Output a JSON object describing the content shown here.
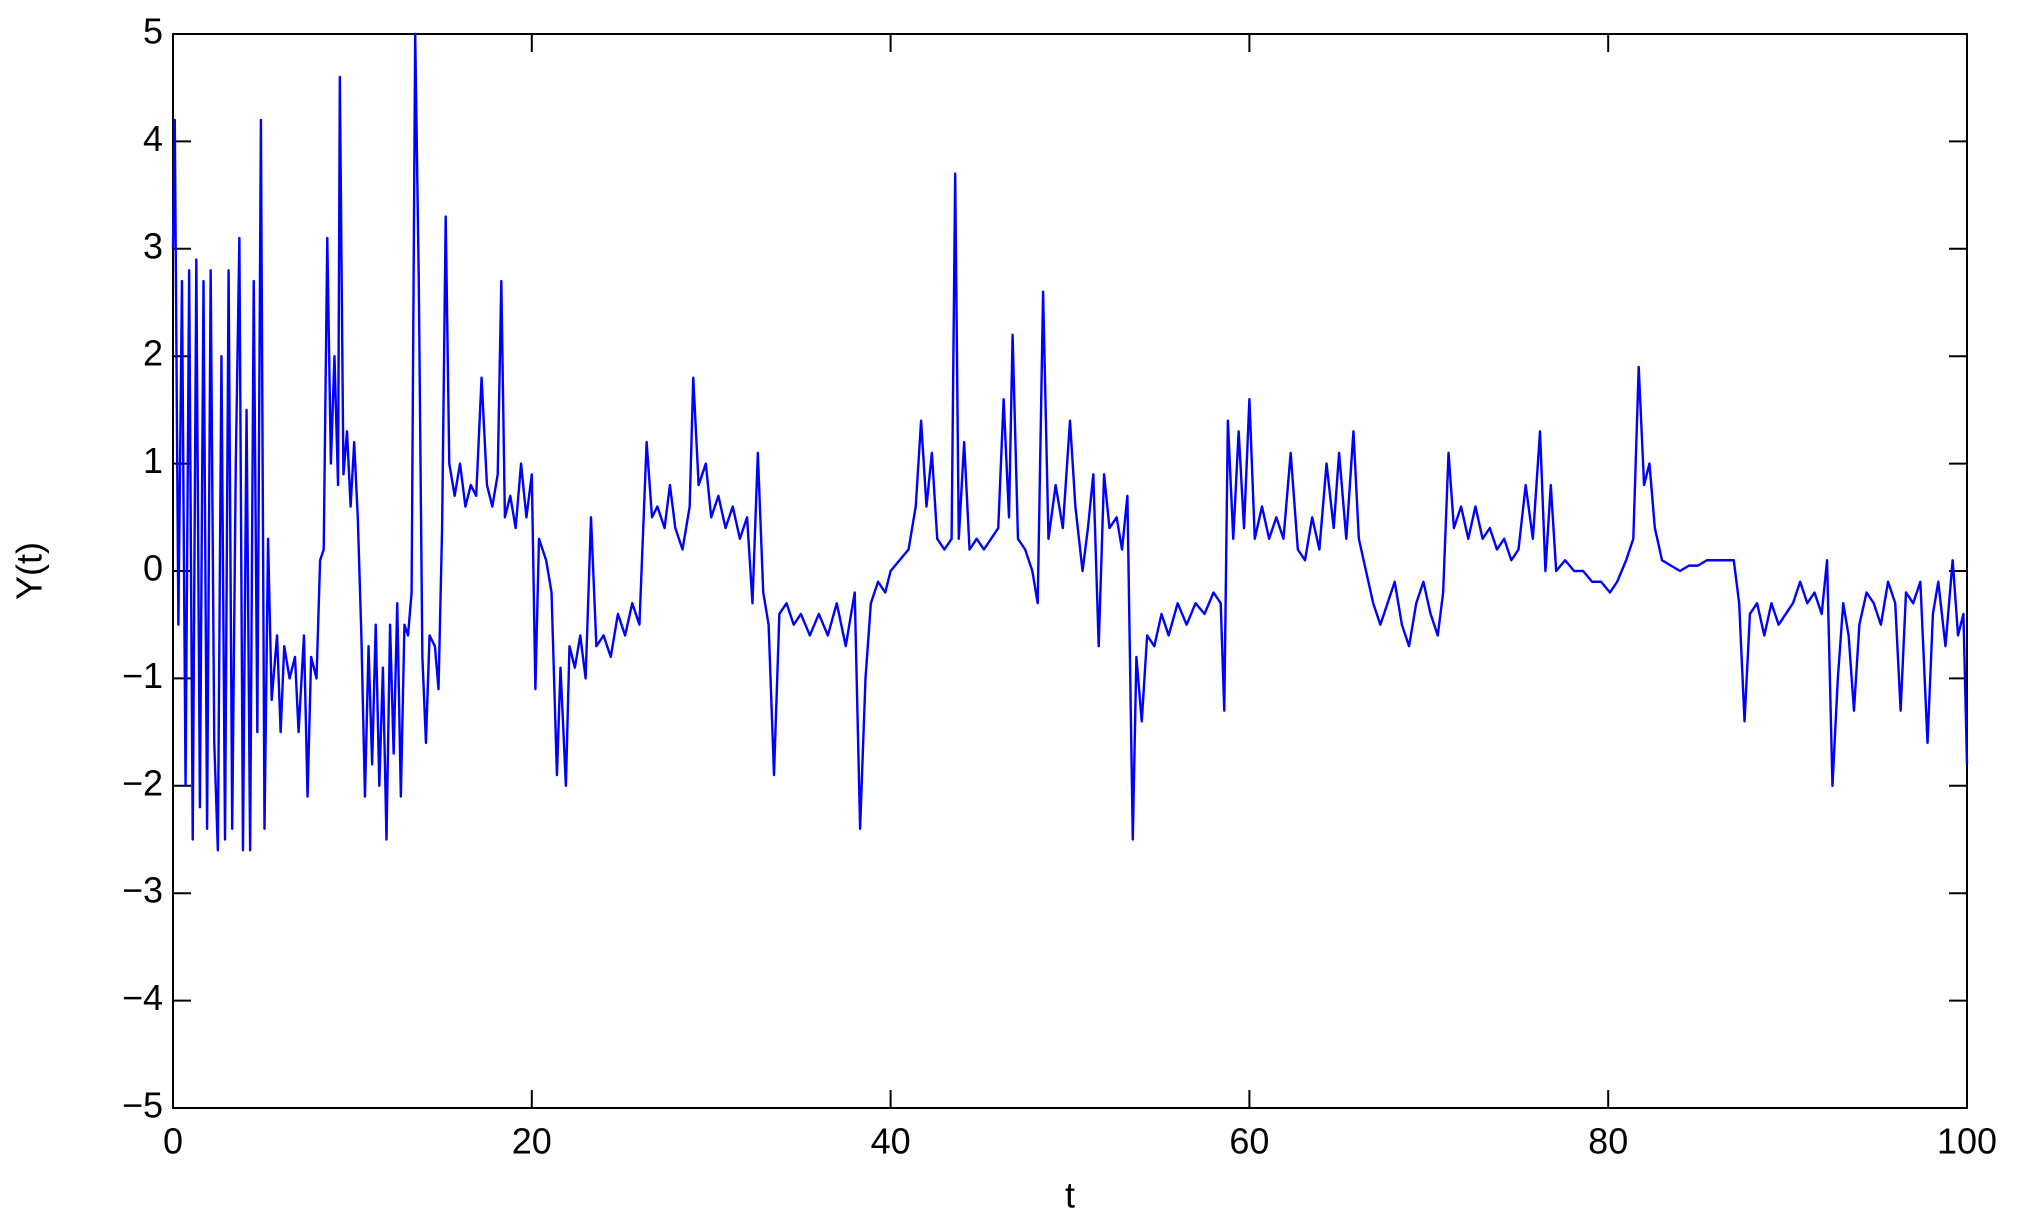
{
  "chart_data": {
    "type": "line",
    "xlabel": "t",
    "ylabel": "Y(t)",
    "color": "#0000ff",
    "x": [
      0,
      0.1,
      0.3,
      0.5,
      0.7,
      0.9,
      1.1,
      1.3,
      1.5,
      1.7,
      1.9,
      2.1,
      2.3,
      2.5,
      2.7,
      2.9,
      3.1,
      3.3,
      3.5,
      3.7,
      3.9,
      4.1,
      4.3,
      4.5,
      4.7,
      4.9,
      5.1,
      5.3,
      5.5,
      5.8,
      6.0,
      6.2,
      6.5,
      6.8,
      7.0,
      7.3,
      7.5,
      7.7,
      8.0,
      8.2,
      8.4,
      8.6,
      8.8,
      9.0,
      9.2,
      9.3,
      9.5,
      9.7,
      9.9,
      10.1,
      10.3,
      10.5,
      10.7,
      10.9,
      11.1,
      11.3,
      11.5,
      11.7,
      11.9,
      12.1,
      12.3,
      12.5,
      12.7,
      12.9,
      13.1,
      13.3,
      13.5,
      13.7,
      13.9,
      14.1,
      14.3,
      14.6,
      14.8,
      15.0,
      15.2,
      15.4,
      15.7,
      16.0,
      16.3,
      16.6,
      16.9,
      17.2,
      17.5,
      17.8,
      18.1,
      18.3,
      18.5,
      18.8,
      19.1,
      19.4,
      19.7,
      20.0,
      20.2,
      20.4,
      20.8,
      21.1,
      21.4,
      21.6,
      21.9,
      22.1,
      22.4,
      22.7,
      23.0,
      23.3,
      23.6,
      24.0,
      24.4,
      24.8,
      25.2,
      25.6,
      26.0,
      26.4,
      26.7,
      27.0,
      27.4,
      27.7,
      28.0,
      28.4,
      28.8,
      29.0,
      29.3,
      29.7,
      30.0,
      30.4,
      30.8,
      31.2,
      31.6,
      32.0,
      32.3,
      32.6,
      32.9,
      33.2,
      33.5,
      33.8,
      34.2,
      34.6,
      35.0,
      35.5,
      36.0,
      36.5,
      37.0,
      37.5,
      38.0,
      38.3,
      38.6,
      38.9,
      39.3,
      39.7,
      40.0,
      40.5,
      41.0,
      41.4,
      41.7,
      42.0,
      42.3,
      42.6,
      43.0,
      43.4,
      43.6,
      43.8,
      44.1,
      44.4,
      44.8,
      45.2,
      45.6,
      46.0,
      46.3,
      46.6,
      46.8,
      47.1,
      47.5,
      47.9,
      48.2,
      48.5,
      48.8,
      49.2,
      49.6,
      50.0,
      50.3,
      50.7,
      51.0,
      51.3,
      51.6,
      51.9,
      52.2,
      52.6,
      52.9,
      53.2,
      53.5,
      53.7,
      54.0,
      54.3,
      54.7,
      55.1,
      55.5,
      56.0,
      56.5,
      57.0,
      57.5,
      58.0,
      58.4,
      58.6,
      58.8,
      59.1,
      59.4,
      59.7,
      60.0,
      60.3,
      60.7,
      61.1,
      61.5,
      61.9,
      62.3,
      62.7,
      63.1,
      63.5,
      63.9,
      64.3,
      64.7,
      65.0,
      65.4,
      65.8,
      66.1,
      66.5,
      66.9,
      67.3,
      67.7,
      68.1,
      68.5,
      68.9,
      69.3,
      69.7,
      70.1,
      70.5,
      70.8,
      71.1,
      71.4,
      71.8,
      72.2,
      72.6,
      73.0,
      73.4,
      73.8,
      74.2,
      74.6,
      75.0,
      75.4,
      75.8,
      76.2,
      76.5,
      76.8,
      77.1,
      77.6,
      78.1,
      78.6,
      79.1,
      79.6,
      80.1,
      80.5,
      81.0,
      81.4,
      81.7,
      82.0,
      82.3,
      82.6,
      83.0,
      83.5,
      84.0,
      84.5,
      85.0,
      85.5,
      86.0,
      86.5,
      87.0,
      87.3,
      87.6,
      87.9,
      88.3,
      88.7,
      89.1,
      89.5,
      89.9,
      90.3,
      90.7,
      91.1,
      91.5,
      91.9,
      92.2,
      92.5,
      92.8,
      93.1,
      93.4,
      93.7,
      94.0,
      94.4,
      94.8,
      95.2,
      95.6,
      96.0,
      96.3,
      96.6,
      97.0,
      97.4,
      97.8,
      98.1,
      98.4,
      98.8,
      99.2,
      99.5,
      99.8,
      100.0
    ],
    "values": [
      3.0,
      4.2,
      -0.5,
      2.7,
      -2.0,
      2.8,
      -2.5,
      2.9,
      -2.2,
      2.7,
      -2.4,
      2.8,
      -1.6,
      -2.6,
      2.0,
      -2.5,
      2.8,
      -2.4,
      1.0,
      3.1,
      -2.6,
      1.5,
      -2.6,
      2.7,
      -1.5,
      4.2,
      -2.4,
      0.3,
      -1.2,
      -0.6,
      -1.5,
      -0.7,
      -1.0,
      -0.8,
      -1.5,
      -0.6,
      -2.1,
      -0.8,
      -1.0,
      0.1,
      0.2,
      3.1,
      1.0,
      2.0,
      0.8,
      4.6,
      0.9,
      1.3,
      0.6,
      1.2,
      0.5,
      -0.6,
      -2.1,
      -0.7,
      -1.8,
      -0.5,
      -2.0,
      -0.9,
      -2.5,
      -0.5,
      -1.7,
      -0.3,
      -2.1,
      -0.5,
      -0.6,
      -0.2,
      5.0,
      2.7,
      -0.8,
      -1.6,
      -0.6,
      -0.7,
      -1.1,
      0.4,
      3.3,
      1.0,
      0.7,
      1.0,
      0.6,
      0.8,
      0.7,
      1.8,
      0.8,
      0.6,
      0.9,
      2.7,
      0.5,
      0.7,
      0.4,
      1.0,
      0.5,
      0.9,
      -1.1,
      0.3,
      0.1,
      -0.2,
      -1.9,
      -0.9,
      -2.0,
      -0.7,
      -0.9,
      -0.6,
      -1.0,
      0.5,
      -0.7,
      -0.6,
      -0.8,
      -0.4,
      -0.6,
      -0.3,
      -0.5,
      1.2,
      0.5,
      0.6,
      0.4,
      0.8,
      0.4,
      0.2,
      0.6,
      1.8,
      0.8,
      1.0,
      0.5,
      0.7,
      0.4,
      0.6,
      0.3,
      0.5,
      -0.3,
      1.1,
      -0.2,
      -0.5,
      -1.9,
      -0.4,
      -0.3,
      -0.5,
      -0.4,
      -0.6,
      -0.4,
      -0.6,
      -0.3,
      -0.7,
      -0.2,
      -2.4,
      -1.0,
      -0.3,
      -0.1,
      -0.2,
      0.0,
      0.1,
      0.2,
      0.6,
      1.4,
      0.6,
      1.1,
      0.3,
      0.2,
      0.3,
      3.7,
      0.3,
      1.2,
      0.2,
      0.3,
      0.2,
      0.3,
      0.4,
      1.6,
      0.5,
      2.2,
      0.3,
      0.2,
      0.0,
      -0.3,
      2.6,
      0.3,
      0.8,
      0.4,
      1.4,
      0.6,
      0.0,
      0.4,
      0.9,
      -0.7,
      0.9,
      0.4,
      0.5,
      0.2,
      0.7,
      -2.5,
      -0.8,
      -1.4,
      -0.6,
      -0.7,
      -0.4,
      -0.6,
      -0.3,
      -0.5,
      -0.3,
      -0.4,
      -0.2,
      -0.3,
      -1.3,
      1.4,
      0.3,
      1.3,
      0.4,
      1.6,
      0.3,
      0.6,
      0.3,
      0.5,
      0.3,
      1.1,
      0.2,
      0.1,
      0.5,
      0.2,
      1.0,
      0.4,
      1.1,
      0.3,
      1.3,
      0.3,
      0.0,
      -0.3,
      -0.5,
      -0.3,
      -0.1,
      -0.5,
      -0.7,
      -0.3,
      -0.1,
      -0.4,
      -0.6,
      -0.2,
      1.1,
      0.4,
      0.6,
      0.3,
      0.6,
      0.3,
      0.4,
      0.2,
      0.3,
      0.1,
      0.2,
      0.8,
      0.3,
      1.3,
      0.0,
      0.8,
      0.0,
      0.1,
      0.0,
      0.0,
      -0.1,
      -0.1,
      -0.2,
      -0.1,
      0.1,
      0.3,
      1.9,
      0.8,
      1.0,
      0.4,
      0.1,
      0.05,
      0.0,
      0.05,
      0.05,
      0.1,
      0.1,
      0.1,
      0.1,
      -0.3,
      -1.4,
      -0.4,
      -0.3,
      -0.6,
      -0.3,
      -0.5,
      -0.4,
      -0.3,
      -0.1,
      -0.3,
      -0.2,
      -0.4,
      0.1,
      -2.0,
      -1.0,
      -0.3,
      -0.6,
      -1.3,
      -0.5,
      -0.2,
      -0.3,
      -0.5,
      -0.1,
      -0.3,
      -1.3,
      -0.2,
      -0.3,
      -0.1,
      -1.6,
      -0.4,
      -0.1,
      -0.7,
      0.1,
      -0.6,
      -0.4,
      -1.8
    ],
    "xlim": [
      0,
      100
    ],
    "xticks": [
      0,
      20,
      40,
      60,
      80,
      100
    ],
    "ylim": [
      -5,
      5
    ],
    "yticks": [
      {
        "value": -5,
        "label": "−5"
      },
      {
        "value": -4,
        "label": "−4"
      },
      {
        "value": -3,
        "label": "−3"
      },
      {
        "value": -2,
        "label": "−2"
      },
      {
        "value": -1,
        "label": "−1"
      },
      0,
      1,
      2,
      3,
      4,
      5
    ],
    "grid": false
  }
}
